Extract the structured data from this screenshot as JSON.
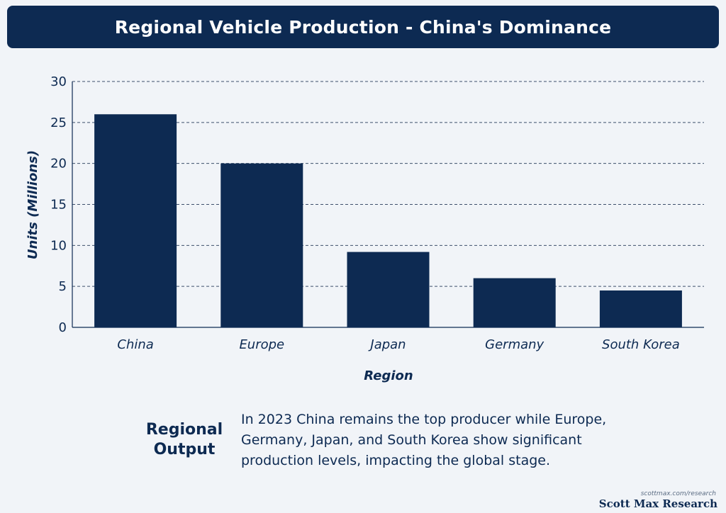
{
  "header": {
    "title": "Regional Vehicle Production - China's Dominance"
  },
  "chart_data": {
    "type": "bar",
    "title": "Regional Vehicle Production - China's Dominance",
    "categories": [
      "China",
      "Europe",
      "Japan",
      "Germany",
      "South Korea"
    ],
    "values": [
      26,
      20,
      9.2,
      6,
      4.5
    ],
    "xlabel": "Region",
    "ylabel": "Units (Millions)",
    "ylim": [
      0,
      30
    ],
    "yticks": [
      0,
      5,
      10,
      15,
      20,
      25,
      30
    ],
    "grid": true,
    "grid_style": "dashed",
    "bar_color": "#0d2a52"
  },
  "summary": {
    "heading": "Regional Output",
    "body": "In 2023 China remains the top producer while Europe, Germany, Japan, and South Korea show significant production levels, impacting the global stage."
  },
  "footer": {
    "url": "scottmax.com/research",
    "brand": "Scott Max Research"
  },
  "colors": {
    "primary": "#0d2a52",
    "background": "#f1f4f8"
  }
}
